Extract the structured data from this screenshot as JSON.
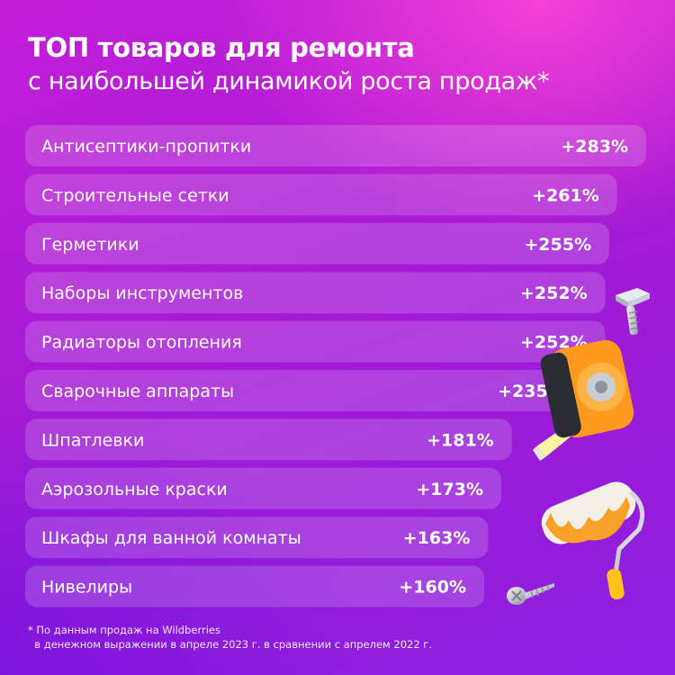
{
  "chart_data": {
    "type": "bar",
    "orientation": "horizontal",
    "title": "ТОП товаров для ремонта",
    "subtitle": "с наибольшей динамикой роста продаж*",
    "categories": [
      "Антисептики-пропитки",
      "Строительные сетки",
      "Герметики",
      "Наборы инструментов",
      "Радиаторы отопления",
      "Сварочные аппараты",
      "Шпатлевки",
      "Аэрозольные краски",
      "Шкафы для ванной комнаты",
      "Нивелиры"
    ],
    "values": [
      283,
      261,
      255,
      252,
      252,
      235,
      181,
      173,
      163,
      160
    ],
    "value_labels": [
      "+283%",
      "+261%",
      "+255%",
      "+252%",
      "+252%",
      "+235%",
      "+181%",
      "+173%",
      "+163%",
      "+160%"
    ],
    "unit": "%"
  },
  "footnote": {
    "line1": "* По данным продаж на Wildberries",
    "line2": "  в денежном выражении в апреле 2023 г. в сравнении с апрелем 2022 г."
  },
  "colors": {
    "bar_fill": "#ffffff",
    "bar_opacity": 0.17,
    "text": "#ffffff"
  },
  "decorations": [
    "bolt-icon",
    "tape-measure-icon",
    "paint-roller-icon",
    "screw-icon"
  ]
}
